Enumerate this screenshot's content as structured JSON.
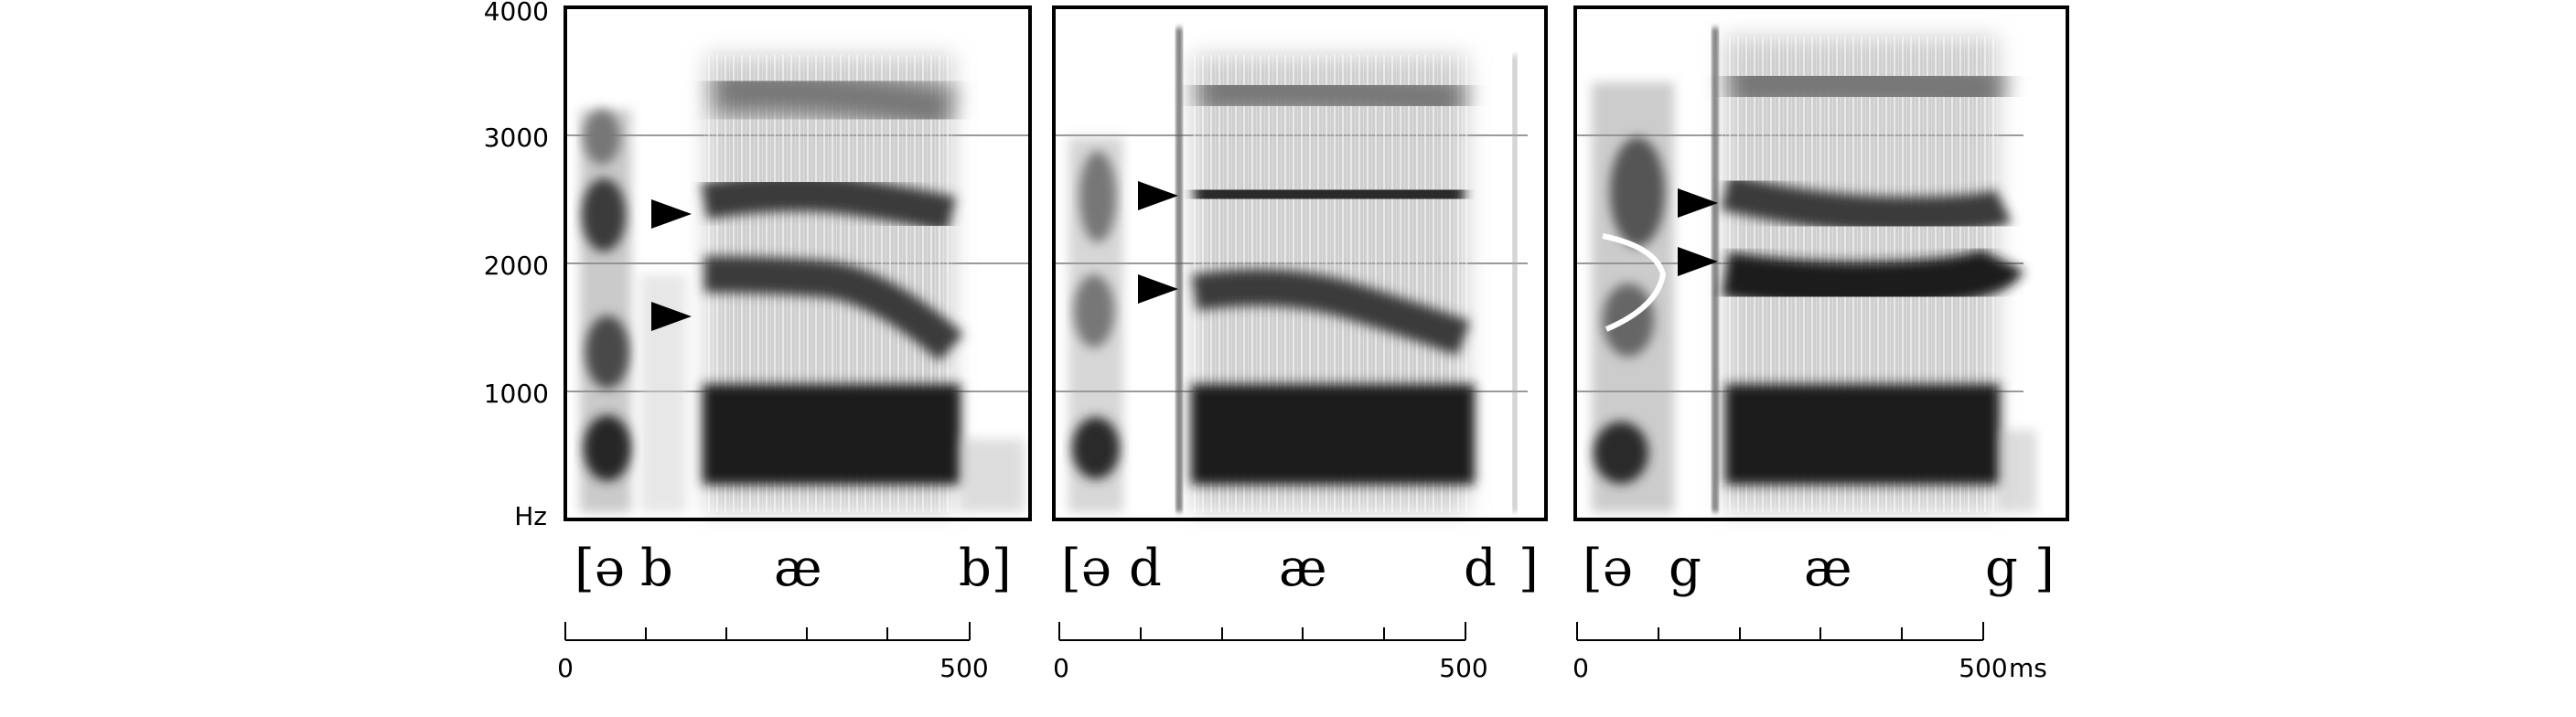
{
  "y_axis": {
    "unit_label": "Hz",
    "ticks": [
      "4000",
      "3000",
      "2000",
      "1000"
    ]
  },
  "panels": [
    {
      "id": "bab",
      "segments": [
        "[ə",
        "b",
        "æ",
        "b]"
      ],
      "time_ticks": [
        "0",
        "500"
      ],
      "time_unit": "",
      "arrows_hz": [
        2400,
        1600
      ]
    },
    {
      "id": "dad",
      "segments": [
        "[ə",
        "d",
        "æ",
        "d",
        "]"
      ],
      "time_ticks": [
        "0",
        "500"
      ],
      "time_unit": "",
      "arrows_hz": [
        2550,
        1800
      ]
    },
    {
      "id": "gag",
      "segments": [
        "[ə",
        "g",
        "æ",
        "g",
        "]"
      ],
      "time_ticks": [
        "0",
        "500"
      ],
      "time_unit": "ms",
      "arrows_hz": [
        2450,
        2000
      ],
      "velar_pinch": true
    }
  ],
  "colors": {
    "frame": "#000000",
    "gridline": "#9a9a9a",
    "formant_dark": "#1e1e1e",
    "pinch_curve": "#ffffff"
  }
}
